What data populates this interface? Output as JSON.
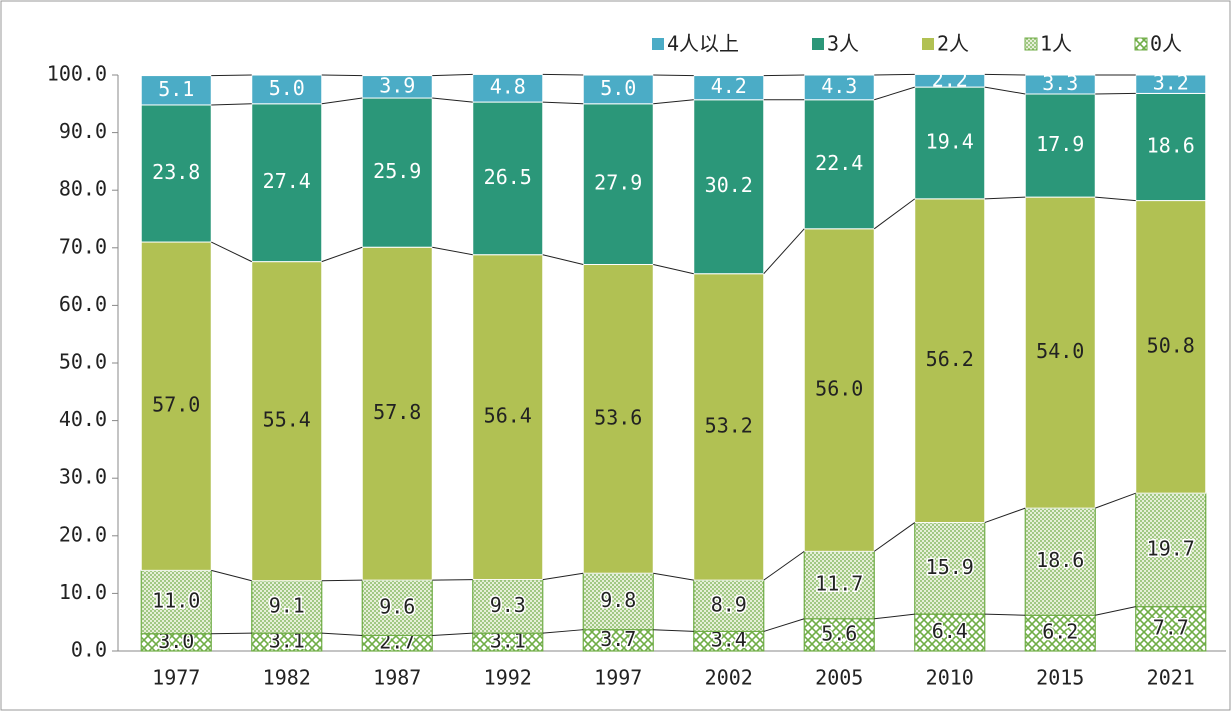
{
  "chart_data": {
    "type": "stacked_bar",
    "categories": [
      "1977",
      "1982",
      "1987",
      "1992",
      "1997",
      "2002",
      "2005",
      "2010",
      "2015",
      "2021"
    ],
    "series": [
      {
        "name": "0人",
        "color": "#70ad47",
        "pattern": "crosshatch",
        "values": [
          3.0,
          3.1,
          2.7,
          3.1,
          3.7,
          3.4,
          5.6,
          6.4,
          6.2,
          7.7
        ],
        "value_labels": [
          "3.0",
          "3.1",
          "2.7",
          "3.1",
          "3.7",
          "3.4",
          "5.6",
          "6.4",
          "6.2",
          "7.7"
        ]
      },
      {
        "name": "1人",
        "color": "#70ad47",
        "pattern": "dots",
        "values": [
          11.0,
          9.1,
          9.6,
          9.3,
          9.8,
          8.9,
          11.7,
          15.9,
          18.6,
          19.7
        ],
        "value_labels": [
          "11.0",
          "9.1",
          "9.6",
          "9.3",
          "9.8",
          "8.9",
          "11.7",
          "15.9",
          "18.6",
          "19.7"
        ]
      },
      {
        "name": "2人",
        "color": "#b1c153",
        "values": [
          57.0,
          55.4,
          57.8,
          56.4,
          53.6,
          53.2,
          56.0,
          56.2,
          54.0,
          50.8
        ],
        "value_labels": [
          "57.0",
          "55.4",
          "57.8",
          "56.4",
          "53.6",
          "53.2",
          "56.0",
          "56.2",
          "54.0",
          "50.8"
        ]
      },
      {
        "name": "3人",
        "color": "#2b9779",
        "values": [
          23.8,
          27.4,
          25.9,
          26.5,
          27.9,
          30.2,
          22.4,
          19.4,
          17.9,
          18.6
        ],
        "value_labels": [
          "23.8",
          "27.4",
          "25.9",
          "26.5",
          "27.9",
          "30.2",
          "22.4",
          "19.4",
          "17.9",
          "18.6"
        ]
      },
      {
        "name": "4人以上",
        "color": "#4bacc6",
        "values": [
          5.1,
          5.0,
          3.9,
          4.8,
          5.0,
          4.2,
          4.3,
          2.2,
          3.3,
          3.2
        ],
        "value_labels": [
          "5.1",
          "5.0",
          "3.9",
          "4.8",
          "5.0",
          "4.2",
          "4.3",
          "2.2",
          "3.3",
          "3.2"
        ]
      }
    ],
    "ylim": [
      0,
      100
    ],
    "yticks": [
      {
        "value": 0,
        "label": "0.0"
      },
      {
        "value": 10,
        "label": "10.0"
      },
      {
        "value": 20,
        "label": "20.0"
      },
      {
        "value": 30,
        "label": "30.0"
      },
      {
        "value": 40,
        "label": "40.0"
      },
      {
        "value": 50,
        "label": "50.0"
      },
      {
        "value": 60,
        "label": "60.0"
      },
      {
        "value": 70,
        "label": "70.0"
      },
      {
        "value": 80,
        "label": "80.0"
      },
      {
        "value": 90,
        "label": "90.0"
      },
      {
        "value": 100,
        "label": "100.0"
      }
    ],
    "legend": "top-right"
  }
}
